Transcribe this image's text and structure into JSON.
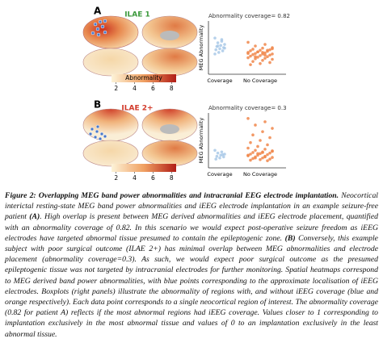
{
  "panels": [
    {
      "label": "A",
      "title": "ILAE 1",
      "title_color": "#3c9a3c",
      "colorbar": {
        "label": "Abnormality",
        "lim": [
          1.5,
          8.5
        ],
        "ticks": [
          2,
          4,
          6,
          8
        ]
      },
      "chart": {
        "type": "swarm",
        "annotation": "Abnormality coverage= 0.82",
        "ylabel": "MEG Abnormality",
        "categories": [
          "Coverage",
          "No Coverage"
        ],
        "colors": [
          "#a9c9e8",
          "#f0864a"
        ],
        "ylim": [
          0,
          10
        ],
        "values": [
          [
            6.8,
            6.2,
            5.9,
            5.6,
            5.4,
            5.2,
            5.0,
            4.8,
            4.6,
            4.4,
            4.1,
            3.8,
            6.5,
            5.3,
            4.9
          ],
          [
            6.0,
            5.6,
            5.3,
            5.0,
            4.9,
            4.7,
            4.6,
            4.5,
            4.4,
            4.3,
            4.2,
            4.1,
            4.0,
            3.9,
            3.8,
            3.8,
            3.7,
            3.6,
            3.5,
            3.4,
            3.3,
            3.2,
            3.1,
            3.0,
            2.9,
            2.8,
            2.6,
            2.4,
            2.2,
            2.0,
            1.8,
            4.5,
            4.2,
            3.9,
            3.6,
            3.3,
            4.8,
            4.1
          ]
        ]
      }
    },
    {
      "label": "B",
      "title": "ILAE 2+",
      "title_color": "#d23a2a",
      "colorbar": {
        "lim": [
          1.5,
          8.5
        ],
        "ticks": [
          2,
          4,
          6,
          8
        ]
      },
      "chart": {
        "type": "swarm",
        "annotation": "Abnormality coverage= 0.3",
        "ylabel": "MEG Abnormality",
        "categories": [
          "Coverage",
          "No Coverage"
        ],
        "colors": [
          "#a9c9e8",
          "#f0864a"
        ],
        "ylim": [
          0,
          10
        ],
        "values": [
          [
            3.2,
            2.9,
            2.7,
            2.5,
            2.3,
            2.1,
            2.0,
            1.8,
            1.6,
            2.4
          ],
          [
            9.0,
            8.4,
            7.8,
            7.2,
            6.6,
            6.0,
            5.5,
            5.0,
            4.6,
            4.2,
            3.9,
            3.6,
            3.4,
            3.2,
            3.0,
            2.9,
            2.8,
            2.7,
            2.6,
            2.5,
            2.4,
            2.3,
            2.2,
            2.1,
            2.0,
            1.9,
            1.8,
            1.7,
            1.6,
            1.5,
            1.4,
            1.3,
            2.6,
            2.3,
            2.0,
            1.8,
            3.1,
            2.8
          ]
        ]
      }
    }
  ],
  "caption": {
    "title": "Figure 2: Overlapping MEG band power abnormalities and intracranial EEG electrode implantation.",
    "runs": [
      {
        "text": " Neocortical interictal resting-state MEG band power abnormalities and iEEG electrode implantation in an example seizure-free patient "
      },
      {
        "text": "(A)",
        "bold": true
      },
      {
        "text": ". High overlap is present between MEG derived abnormalities and iEEG electrode placement, quantified with an abnormality coverage of 0.82. In this scenario we would expect post-operative seizure freedom as iEEG electrodes have targeted abnormal tissue presumed to contain the epileptogenic zone. "
      },
      {
        "text": "(B)",
        "bold": true
      },
      {
        "text": " Conversely, this example subject with poor surgical outcome (ILAE 2+) has minimal overlap between MEG abnormalities and electrode placement (abnormality coverage=0.3). As such, we would expect poor surgical outcome as the presumed epileptogenic tissue was not targeted by intracranial electrodes for further monitoring. Spatial heatmaps correspond to MEG derived band power abnormalities, with blue points corresponding to the approximate localisation of iEEG electrodes. Boxplots (right panels) illustrate the abnormality of regions with, and without iEEG coverage (blue and orange respectively). Each data point corresponds to a single neocortical region of interest. The abnormality coverage (0.82 for patient A) reflects if the most abnormal regions had iEEG coverage. Values closer to 1 corresponding to implantation exclusively in the most abnormal tissue and values of 0 to an implantation exclusively in the least abnormal tissue."
      }
    ]
  }
}
